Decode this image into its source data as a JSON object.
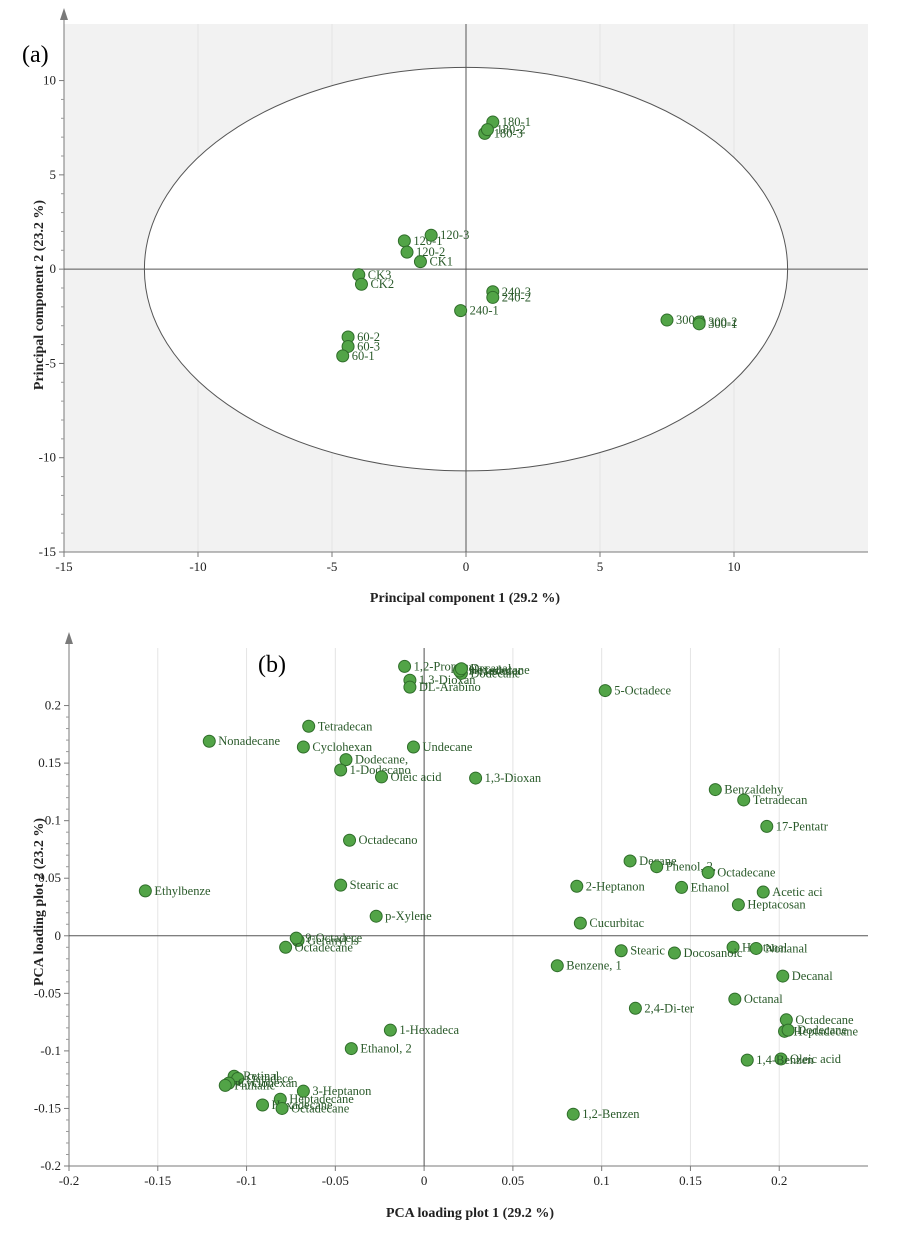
{
  "colors": {
    "point_fill": "#52a447",
    "point_stroke": "#2f6d2a",
    "label": "#2a5a2a",
    "plot_bg": "#f2f2f2",
    "axis": "#7a7a7a"
  },
  "chart_data": [
    {
      "type": "scatter",
      "panel_label": "(a)",
      "title": "",
      "xlabel": "Principal component 1 (29.2 %)",
      "ylabel": "Principal component 2 (23.2 %)",
      "xlim": [
        -15,
        15
      ],
      "ylim": [
        -15,
        13
      ],
      "xticks": [
        -15,
        -10,
        -5,
        0,
        5,
        10
      ],
      "yticks": [
        -15,
        -10,
        -5,
        0,
        5,
        10
      ],
      "grid": "vertical",
      "ellipse": {
        "cx": 0,
        "cy": 0,
        "rx": 12,
        "ry": 10.7
      },
      "points": [
        {
          "label": "180-1",
          "x": 1.0,
          "y": 7.8
        },
        {
          "label": "180-3",
          "x": 0.7,
          "y": 7.2
        },
        {
          "label": "180-2",
          "x": 0.8,
          "y": 7.4
        },
        {
          "label": "120-1",
          "x": -2.3,
          "y": 1.5
        },
        {
          "label": "120-3",
          "x": -1.3,
          "y": 1.8
        },
        {
          "label": "120-2",
          "x": -2.2,
          "y": 0.9
        },
        {
          "label": "CK1",
          "x": -1.7,
          "y": 0.4
        },
        {
          "label": "CK3",
          "x": -4.0,
          "y": -0.3
        },
        {
          "label": "CK2",
          "x": -3.9,
          "y": -0.8
        },
        {
          "label": "240-3",
          "x": 1.0,
          "y": -1.2
        },
        {
          "label": "240-2",
          "x": 1.0,
          "y": -1.5
        },
        {
          "label": "240-1",
          "x": -0.2,
          "y": -2.2
        },
        {
          "label": "60-2",
          "x": -4.4,
          "y": -3.6
        },
        {
          "label": "60-3",
          "x": -4.4,
          "y": -4.1
        },
        {
          "label": "60-1",
          "x": -4.6,
          "y": -4.6
        },
        {
          "label": "300-3",
          "x": 7.5,
          "y": -2.7
        },
        {
          "label": "300-2",
          "x": 8.7,
          "y": -2.8
        },
        {
          "label": "300-1",
          "x": 8.7,
          "y": -2.9
        }
      ]
    },
    {
      "type": "scatter",
      "panel_label": "(b)",
      "title": "",
      "xlabel": "PCA loading plot 1 (29.2 %)",
      "ylabel": "PCA loading plot 2 (23.2 %)",
      "xlim": [
        -0.2,
        0.25
      ],
      "ylim": [
        -0.2,
        0.25
      ],
      "xticks": [
        -0.2,
        -0.15,
        -0.1,
        -0.05,
        0,
        0.05,
        0.1,
        0.15,
        0.2
      ],
      "xtick_labels": [
        "-0.2",
        "-0.15",
        "-0.1",
        "-0.05",
        "0",
        "0.05",
        "0.1",
        "0.15",
        "0.2"
      ],
      "yticks": [
        -0.2,
        -0.15,
        -0.1,
        -0.05,
        0,
        0.05,
        0.1,
        0.15,
        0.2
      ],
      "ytick_labels": [
        "-0.2",
        "-0.15",
        "-0.1",
        "-0.05",
        "0",
        "0.05",
        "0.1",
        "0.15",
        "0.2"
      ],
      "grid": "vertical",
      "points": [
        {
          "label": "1,2-Propan",
          "x": -0.011,
          "y": 0.234
        },
        {
          "label": "1,3-Dioxan",
          "x": -0.008,
          "y": 0.222
        },
        {
          "label": "Hexadecane",
          "x": 0.02,
          "y": 0.231
        },
        {
          "label": "Dodecane",
          "x": 0.021,
          "y": 0.228
        },
        {
          "label": "9-Hexadec",
          "x": 0.02,
          "y": 0.23
        },
        {
          "label": "Decanal",
          "x": 0.021,
          "y": 0.232
        },
        {
          "label": "DL-Arabino",
          "x": -0.008,
          "y": 0.216
        },
        {
          "label": "5-Octadece",
          "x": 0.102,
          "y": 0.213
        },
        {
          "label": "Tetradecan",
          "x": -0.065,
          "y": 0.182
        },
        {
          "label": "Nonadecane",
          "x": -0.121,
          "y": 0.169
        },
        {
          "label": "Cyclohexan",
          "x": -0.068,
          "y": 0.164
        },
        {
          "label": "Dodecane,",
          "x": -0.044,
          "y": 0.153
        },
        {
          "label": "1-Dodecano",
          "x": -0.047,
          "y": 0.144
        },
        {
          "label": "Undecane",
          "x": -0.006,
          "y": 0.164
        },
        {
          "label": "Oleic acid",
          "x": -0.024,
          "y": 0.138
        },
        {
          "label": "1,3-Dioxan",
          "x": 0.029,
          "y": 0.137
        },
        {
          "label": "Benzaldehy",
          "x": 0.164,
          "y": 0.127
        },
        {
          "label": "Tetradecan",
          "x": 0.18,
          "y": 0.118
        },
        {
          "label": "17-Pentatr",
          "x": 0.193,
          "y": 0.095
        },
        {
          "label": "Octadecano",
          "x": -0.042,
          "y": 0.083
        },
        {
          "label": "Decane",
          "x": 0.116,
          "y": 0.065
        },
        {
          "label": "Phenol, 2,",
          "x": 0.131,
          "y": 0.06
        },
        {
          "label": "Octadecane",
          "x": 0.16,
          "y": 0.055
        },
        {
          "label": "Stearic ac",
          "x": -0.047,
          "y": 0.044
        },
        {
          "label": "2-Heptanon",
          "x": 0.086,
          "y": 0.043
        },
        {
          "label": "Ethanol",
          "x": 0.145,
          "y": 0.042
        },
        {
          "label": "Acetic aci",
          "x": 0.191,
          "y": 0.038
        },
        {
          "label": "Ethylbenze",
          "x": -0.157,
          "y": 0.039
        },
        {
          "label": "Heptacosan",
          "x": 0.177,
          "y": 0.027
        },
        {
          "label": "p-Xylene",
          "x": -0.027,
          "y": 0.017
        },
        {
          "label": "Cucurbitac",
          "x": 0.088,
          "y": 0.011
        },
        {
          "label": "Geranyl is",
          "x": -0.071,
          "y": -0.004
        },
        {
          "label": "9-Octadece",
          "x": -0.072,
          "y": -0.002
        },
        {
          "label": "Octadecane",
          "x": -0.078,
          "y": -0.01
        },
        {
          "label": "Heptanal",
          "x": 0.174,
          "y": -0.01
        },
        {
          "label": "Nonanal",
          "x": 0.187,
          "y": -0.011
        },
        {
          "label": "Stearic ac",
          "x": 0.111,
          "y": -0.013
        },
        {
          "label": "Docosanoic",
          "x": 0.141,
          "y": -0.015
        },
        {
          "label": "Benzene, 1",
          "x": 0.075,
          "y": -0.026
        },
        {
          "label": "Decanal",
          "x": 0.202,
          "y": -0.035
        },
        {
          "label": "Octanal",
          "x": 0.175,
          "y": -0.055
        },
        {
          "label": "2,4-Di-ter",
          "x": 0.119,
          "y": -0.063
        },
        {
          "label": "Octadecane",
          "x": 0.204,
          "y": -0.073
        },
        {
          "label": "Heptadecane",
          "x": 0.203,
          "y": -0.083
        },
        {
          "label": "Dodecane",
          "x": 0.205,
          "y": -0.082
        },
        {
          "label": "1-Hexadeca",
          "x": -0.019,
          "y": -0.082
        },
        {
          "label": "Ethanol, 2",
          "x": -0.041,
          "y": -0.098
        },
        {
          "label": "Oleic acid",
          "x": 0.201,
          "y": -0.107
        },
        {
          "label": "1,4-Benzen",
          "x": 0.182,
          "y": -0.108
        },
        {
          "label": "Retinal",
          "x": -0.107,
          "y": -0.122
        },
        {
          "label": "Octadece",
          "x": -0.105,
          "y": -0.124
        },
        {
          "label": "Cyclohexan",
          "x": -0.11,
          "y": -0.128
        },
        {
          "label": "Phthalic",
          "x": -0.112,
          "y": -0.13
        },
        {
          "label": "3-Heptanon",
          "x": -0.068,
          "y": -0.135
        },
        {
          "label": "Heptadecane",
          "x": -0.081,
          "y": -0.142
        },
        {
          "label": "Hexadecane",
          "x": -0.091,
          "y": -0.147
        },
        {
          "label": "Octadecane",
          "x": -0.08,
          "y": -0.15
        },
        {
          "label": "1,2-Benzen",
          "x": 0.084,
          "y": -0.155
        }
      ]
    }
  ]
}
